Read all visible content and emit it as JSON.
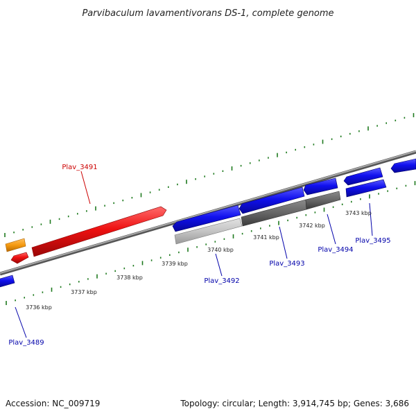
{
  "title": "Parvibaculum lavamentivorans DS-1, complete genome",
  "footer": {
    "accession": "Accession: NC_009719",
    "summary": "Topology: circular; Length: 3,914,745 bp; Genes: 3,686"
  },
  "scale": {
    "ticks": [
      "3736 kbp",
      "3737 kbp",
      "3738 kbp",
      "3739 kbp",
      "3740 kbp",
      "3741 kbp",
      "3742 kbp",
      "3743 kbp"
    ]
  },
  "genes": {
    "plav_3489": "Plav_3489",
    "plav_3491": "Plav_3491",
    "plav_3492": "Plav_3492",
    "plav_3493": "Plav_3493",
    "plav_3494": "Plav_3494",
    "plav_3495": "Plav_3495"
  },
  "colors": {
    "forward_cds": "#1010ee",
    "reverse_cds": "#ee1111",
    "rna": "#f59a10",
    "highlight_label": "#cc0000",
    "label": "#0000aa",
    "tick": "#1e7a1e",
    "backbone": "#888888"
  }
}
